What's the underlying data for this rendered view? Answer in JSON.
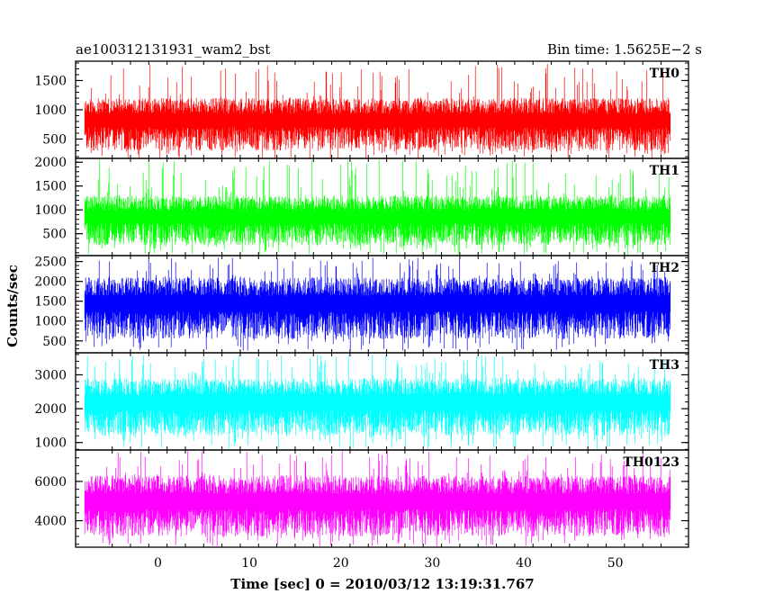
{
  "chart_data": {
    "type": "line",
    "title_left": "ae100312131931_wam2_bst",
    "title_right": "Bin time: 1.5625E−2 s",
    "xlabel": "Time [sec] 0 = 2010/03/12 13:19:31.767",
    "ylabel": "Counts/sec",
    "xlim": [
      -9,
      58
    ],
    "x_ticks": [
      0,
      10,
      20,
      30,
      40,
      50
    ],
    "x_tick_labels": [
      "0",
      "10",
      "20",
      "30",
      "40",
      "50"
    ],
    "data_x_range": [
      -8,
      56
    ],
    "grid": false,
    "series": [
      {
        "name": "TH0",
        "color": "#ff0000",
        "ylim": [
          170,
          1830
        ],
        "y_ticks": [
          500,
          1000,
          1500
        ],
        "y_tick_labels": [
          "500",
          "1000",
          "1500"
        ],
        "base_low": 300,
        "base_high": 1200,
        "spike_low": 150,
        "spike_high": 1800
      },
      {
        "name": "TH1",
        "color": "#00ff00",
        "ylim": [
          40,
          2080
        ],
        "y_ticks": [
          500,
          1000,
          1500,
          2000
        ],
        "y_tick_labels": [
          "500",
          "1000",
          "1500",
          "2000"
        ],
        "base_low": 250,
        "base_high": 1300,
        "spike_low": 60,
        "spike_high": 2050
      },
      {
        "name": "TH2",
        "color": "#0000ff",
        "ylim": [
          200,
          2650
        ],
        "y_ticks": [
          500,
          1000,
          1500,
          2000,
          2500
        ],
        "y_tick_labels": [
          "500",
          "1000",
          "1500",
          "2000",
          "2500"
        ],
        "base_low": 550,
        "base_high": 2100,
        "spike_low": 250,
        "spike_high": 2600
      },
      {
        "name": "TH3",
        "color": "#00ffff",
        "ylim": [
          780,
          3650
        ],
        "y_ticks": [
          1000,
          2000,
          3000
        ],
        "y_tick_labels": [
          "1000",
          "2000",
          "3000"
        ],
        "base_low": 1200,
        "base_high": 2900,
        "spike_low": 800,
        "spike_high": 3600
      },
      {
        "name": "TH0123",
        "color": "#ff00ff",
        "ylim": [
          2650,
          7600
        ],
        "y_ticks": [
          4000,
          6000
        ],
        "y_tick_labels": [
          "4000",
          "6000"
        ],
        "base_low": 3200,
        "base_high": 6300,
        "spike_low": 2700,
        "spike_high": 7550
      }
    ]
  }
}
